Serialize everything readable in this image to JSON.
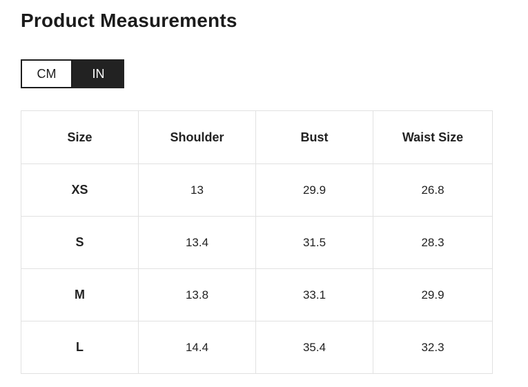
{
  "page": {
    "title": "Product Measurements"
  },
  "unit_toggle": {
    "options": [
      {
        "label": "CM",
        "active": false
      },
      {
        "label": "IN",
        "active": true
      }
    ],
    "selected": "IN"
  },
  "table": {
    "headers": [
      "Size",
      "Shoulder",
      "Bust",
      "Waist Size"
    ],
    "rows": [
      [
        "XS",
        "13",
        "29.9",
        "26.8"
      ],
      [
        "S",
        "13.4",
        "31.5",
        "28.3"
      ],
      [
        "M",
        "13.8",
        "33.1",
        "29.9"
      ],
      [
        "L",
        "14.4",
        "35.4",
        "32.3"
      ]
    ],
    "unit": "IN"
  },
  "colors": {
    "text": "#222222",
    "title_text": "#1b1b1b",
    "table_border": "#e1e1e1",
    "toggle_active_bg": "#222222",
    "toggle_active_text": "#ffffff",
    "toggle_inactive_bg": "#ffffff",
    "toggle_inactive_border": "#1c1c1c",
    "page_bg": "#ffffff"
  }
}
